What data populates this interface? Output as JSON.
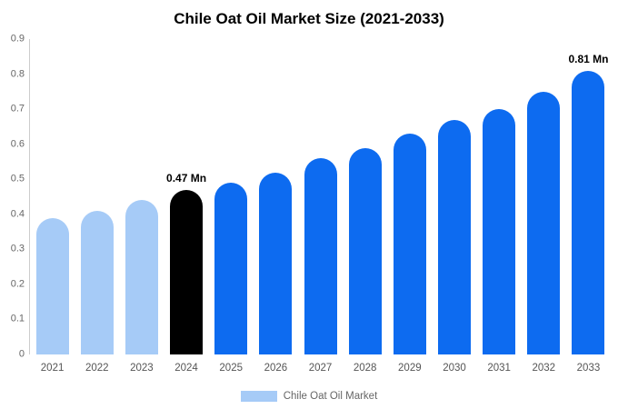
{
  "chart_data": {
    "type": "bar",
    "title": "Chile Oat Oil Market Size (2021-2033)",
    "categories": [
      "2021",
      "2022",
      "2023",
      "2024",
      "2025",
      "2026",
      "2027",
      "2028",
      "2029",
      "2030",
      "2031",
      "2032",
      "2033"
    ],
    "values": [
      0.39,
      0.41,
      0.44,
      0.47,
      0.49,
      0.52,
      0.56,
      0.59,
      0.63,
      0.67,
      0.7,
      0.75,
      0.81
    ],
    "bar_colors": [
      "#a6cbf7",
      "#a6cbf7",
      "#a6cbf7",
      "#000000",
      "#0d6bf0",
      "#0d6bf0",
      "#0d6bf0",
      "#0d6bf0",
      "#0d6bf0",
      "#0d6bf0",
      "#0d6bf0",
      "#0d6bf0",
      "#0d6bf0"
    ],
    "annotations": [
      {
        "index": 3,
        "text": "0.47 Mn"
      },
      {
        "index": 12,
        "text": "0.81 Mn"
      }
    ],
    "xlabel": "",
    "ylabel": "",
    "ylim": [
      0,
      0.9
    ],
    "y_ticks": [
      0,
      0.1,
      0.2,
      0.3,
      0.4,
      0.5,
      0.6,
      0.7,
      0.8,
      0.9
    ],
    "grid": false,
    "axis_color": "#cccccc",
    "tick_label_color": "#666666",
    "legend": {
      "position": "bottom",
      "label": "Chile Oat Oil Market",
      "swatch_color": "#a6cbf7"
    }
  }
}
